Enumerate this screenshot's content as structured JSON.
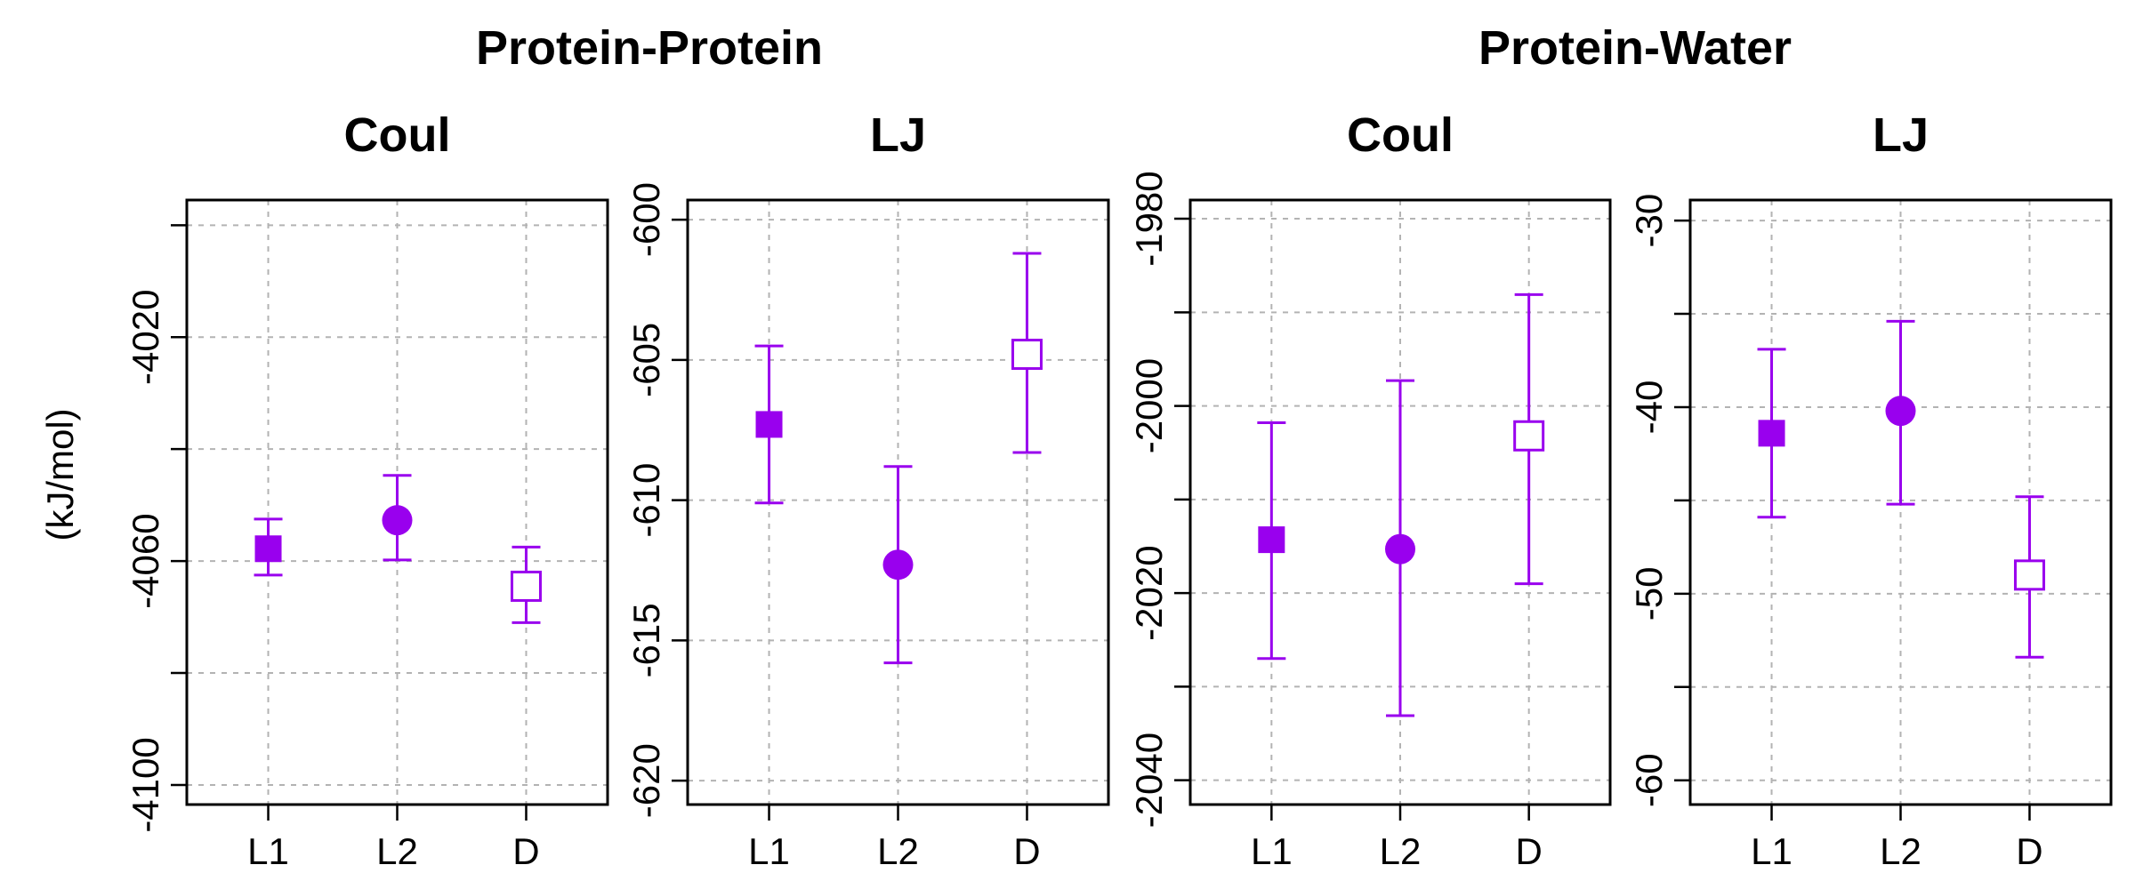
{
  "colors": {
    "marker": "#9900ee",
    "grid": "#b3b3b3"
  },
  "y_unit_label": "(kJ/mol)",
  "groups": [
    {
      "title": "Protein-Protein"
    },
    {
      "title": "Protein-Water"
    }
  ],
  "chart_data": [
    {
      "type": "scatter",
      "group": "Protein-Protein",
      "title": "Coul",
      "ylabel": "(kJ/mol)",
      "categories": [
        "L1",
        "L2",
        "D"
      ],
      "markers": [
        "filled-square",
        "filled-circle",
        "open-square"
      ],
      "values": [
        -4057.8,
        -4052.7,
        -4064.5
      ],
      "err_low": [
        -4062.5,
        -4059.8,
        -4071.0
      ],
      "err_high": [
        -4052.5,
        -4044.7,
        -4057.5
      ],
      "yticks": [
        -4020,
        -4060,
        -4100
      ],
      "ygrid": [
        -4000,
        -4020,
        -4040,
        -4060,
        -4080,
        -4100
      ],
      "ylim": [
        -4103.5,
        -3995.5
      ],
      "grid": true
    },
    {
      "type": "scatter",
      "group": "Protein-Protein",
      "title": "LJ",
      "categories": [
        "L1",
        "L2",
        "D"
      ],
      "markers": [
        "filled-square",
        "filled-circle",
        "open-square"
      ],
      "values": [
        -607.3,
        -612.3,
        -604.8
      ],
      "err_low": [
        -610.1,
        -615.8,
        -608.3
      ],
      "err_high": [
        -604.5,
        -608.8,
        -601.2
      ],
      "yticks": [
        -600,
        -605,
        -610,
        -615,
        -620
      ],
      "ygrid": [
        -600,
        -605,
        -610,
        -615,
        -620
      ],
      "ylim": [
        -620.85,
        -599.3
      ],
      "grid": true
    },
    {
      "type": "scatter",
      "group": "Protein-Water",
      "title": "Coul",
      "categories": [
        "L1",
        "L2",
        "D"
      ],
      "markers": [
        "filled-square",
        "filled-circle",
        "open-square"
      ],
      "values": [
        -2014.3,
        -2015.3,
        -2003.2
      ],
      "err_low": [
        -2027.0,
        -2033.1,
        -2019.0
      ],
      "err_high": [
        -2001.8,
        -1997.3,
        -1988.1
      ],
      "yticks": [
        -1980,
        -2000,
        -2020,
        -2040
      ],
      "ygrid": [
        -1980,
        -1990,
        -2000,
        -2010,
        -2020,
        -2030,
        -2040
      ],
      "ylim": [
        -2042.6,
        -1978.0
      ],
      "grid": true
    },
    {
      "type": "scatter",
      "group": "Protein-Water",
      "title": "LJ",
      "categories": [
        "L1",
        "L2",
        "D"
      ],
      "markers": [
        "filled-square",
        "filled-circle",
        "open-square"
      ],
      "values": [
        -41.4,
        -40.2,
        -49.0
      ],
      "err_low": [
        -45.9,
        -45.2,
        -53.4
      ],
      "err_high": [
        -36.9,
        -35.4,
        -44.8
      ],
      "yticks": [
        -30,
        -40,
        -50,
        -60
      ],
      "ygrid": [
        -30,
        -35,
        -40,
        -45,
        -50,
        -55,
        -60
      ],
      "ylim": [
        -61.3,
        -28.9
      ],
      "grid": true
    }
  ]
}
